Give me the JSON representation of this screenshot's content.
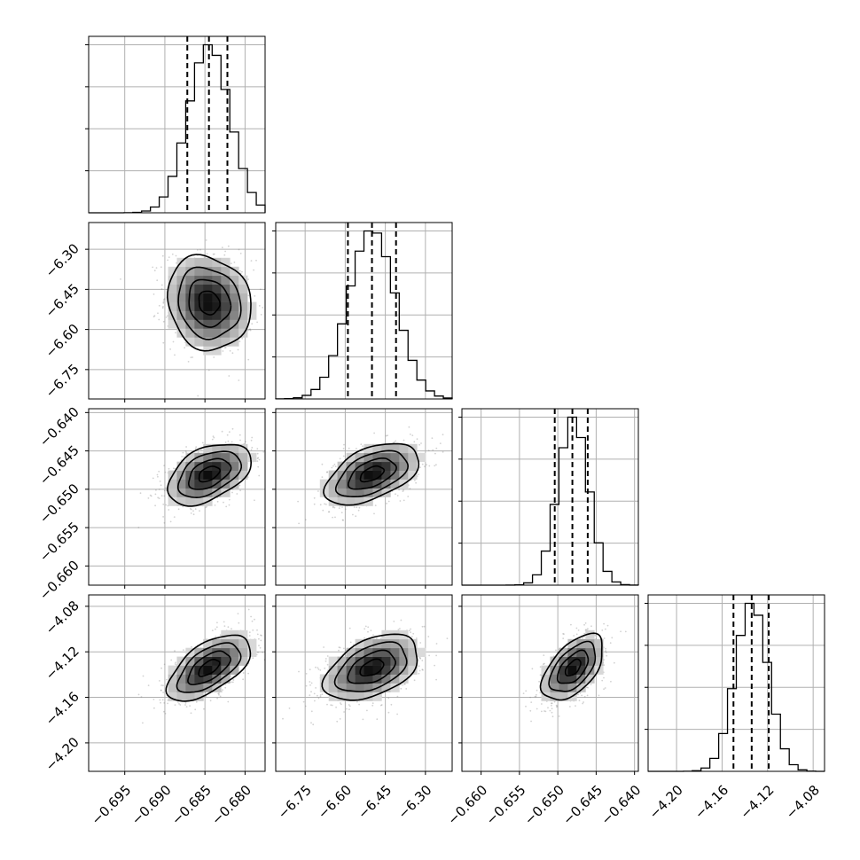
{
  "chart_data": {
    "type": "corner",
    "params": [
      {
        "range": [
          -0.6995,
          -0.6775
        ],
        "ticks": [
          -0.695,
          -0.69,
          -0.685,
          -0.68
        ],
        "tick_labels": [
          "−0.695",
          "−0.690",
          "−0.685",
          "−0.680"
        ],
        "mean": -0.6845,
        "sd": 0.0026,
        "q": [
          -0.6872,
          -0.6845,
          -0.6822
        ]
      },
      {
        "range": [
          -6.86,
          -6.2
        ],
        "ticks": [
          -6.75,
          -6.6,
          -6.45,
          -6.3
        ],
        "tick_labels": [
          "−6.75",
          "−6.60",
          "−6.45",
          "−6.30"
        ],
        "mean": -6.5,
        "sd": 0.088,
        "q": [
          -6.59,
          -6.5,
          -6.41
        ]
      },
      {
        "range": [
          -0.6625,
          -0.6395
        ],
        "ticks": [
          -0.66,
          -0.655,
          -0.65,
          -0.645,
          -0.64
        ],
        "tick_labels": [
          "−0.660",
          "−0.655",
          "−0.650",
          "−0.645",
          "−0.640"
        ],
        "mean": -0.648,
        "sd": 0.002,
        "q": [
          -0.6504,
          -0.6481,
          -0.6461
        ]
      },
      {
        "range": [
          -4.225,
          -4.07
        ],
        "ticks": [
          -4.2,
          -4.16,
          -4.12,
          -4.08
        ],
        "tick_labels": [
          "−4.20",
          "−4.16",
          "−4.12",
          "−4.08"
        ],
        "mean": -4.134,
        "sd": 0.0145,
        "q": [
          -4.15,
          -4.134,
          -4.119
        ]
      }
    ],
    "correlations": {
      "1-0": -0.12,
      "2-0": 0.45,
      "2-1": 0.5,
      "3-0": 0.6,
      "3-1": 0.45,
      "3-2": 0.55
    },
    "hist_bins": 20,
    "contour_levels": [
      0.5,
      1.0,
      1.5,
      2.0
    ],
    "grid": true,
    "colors": {
      "line": "#000000",
      "grid": "#b0b0b0",
      "points": "#7f7f7f",
      "density_dark": "#000000",
      "density_light": "#ffffff"
    }
  }
}
